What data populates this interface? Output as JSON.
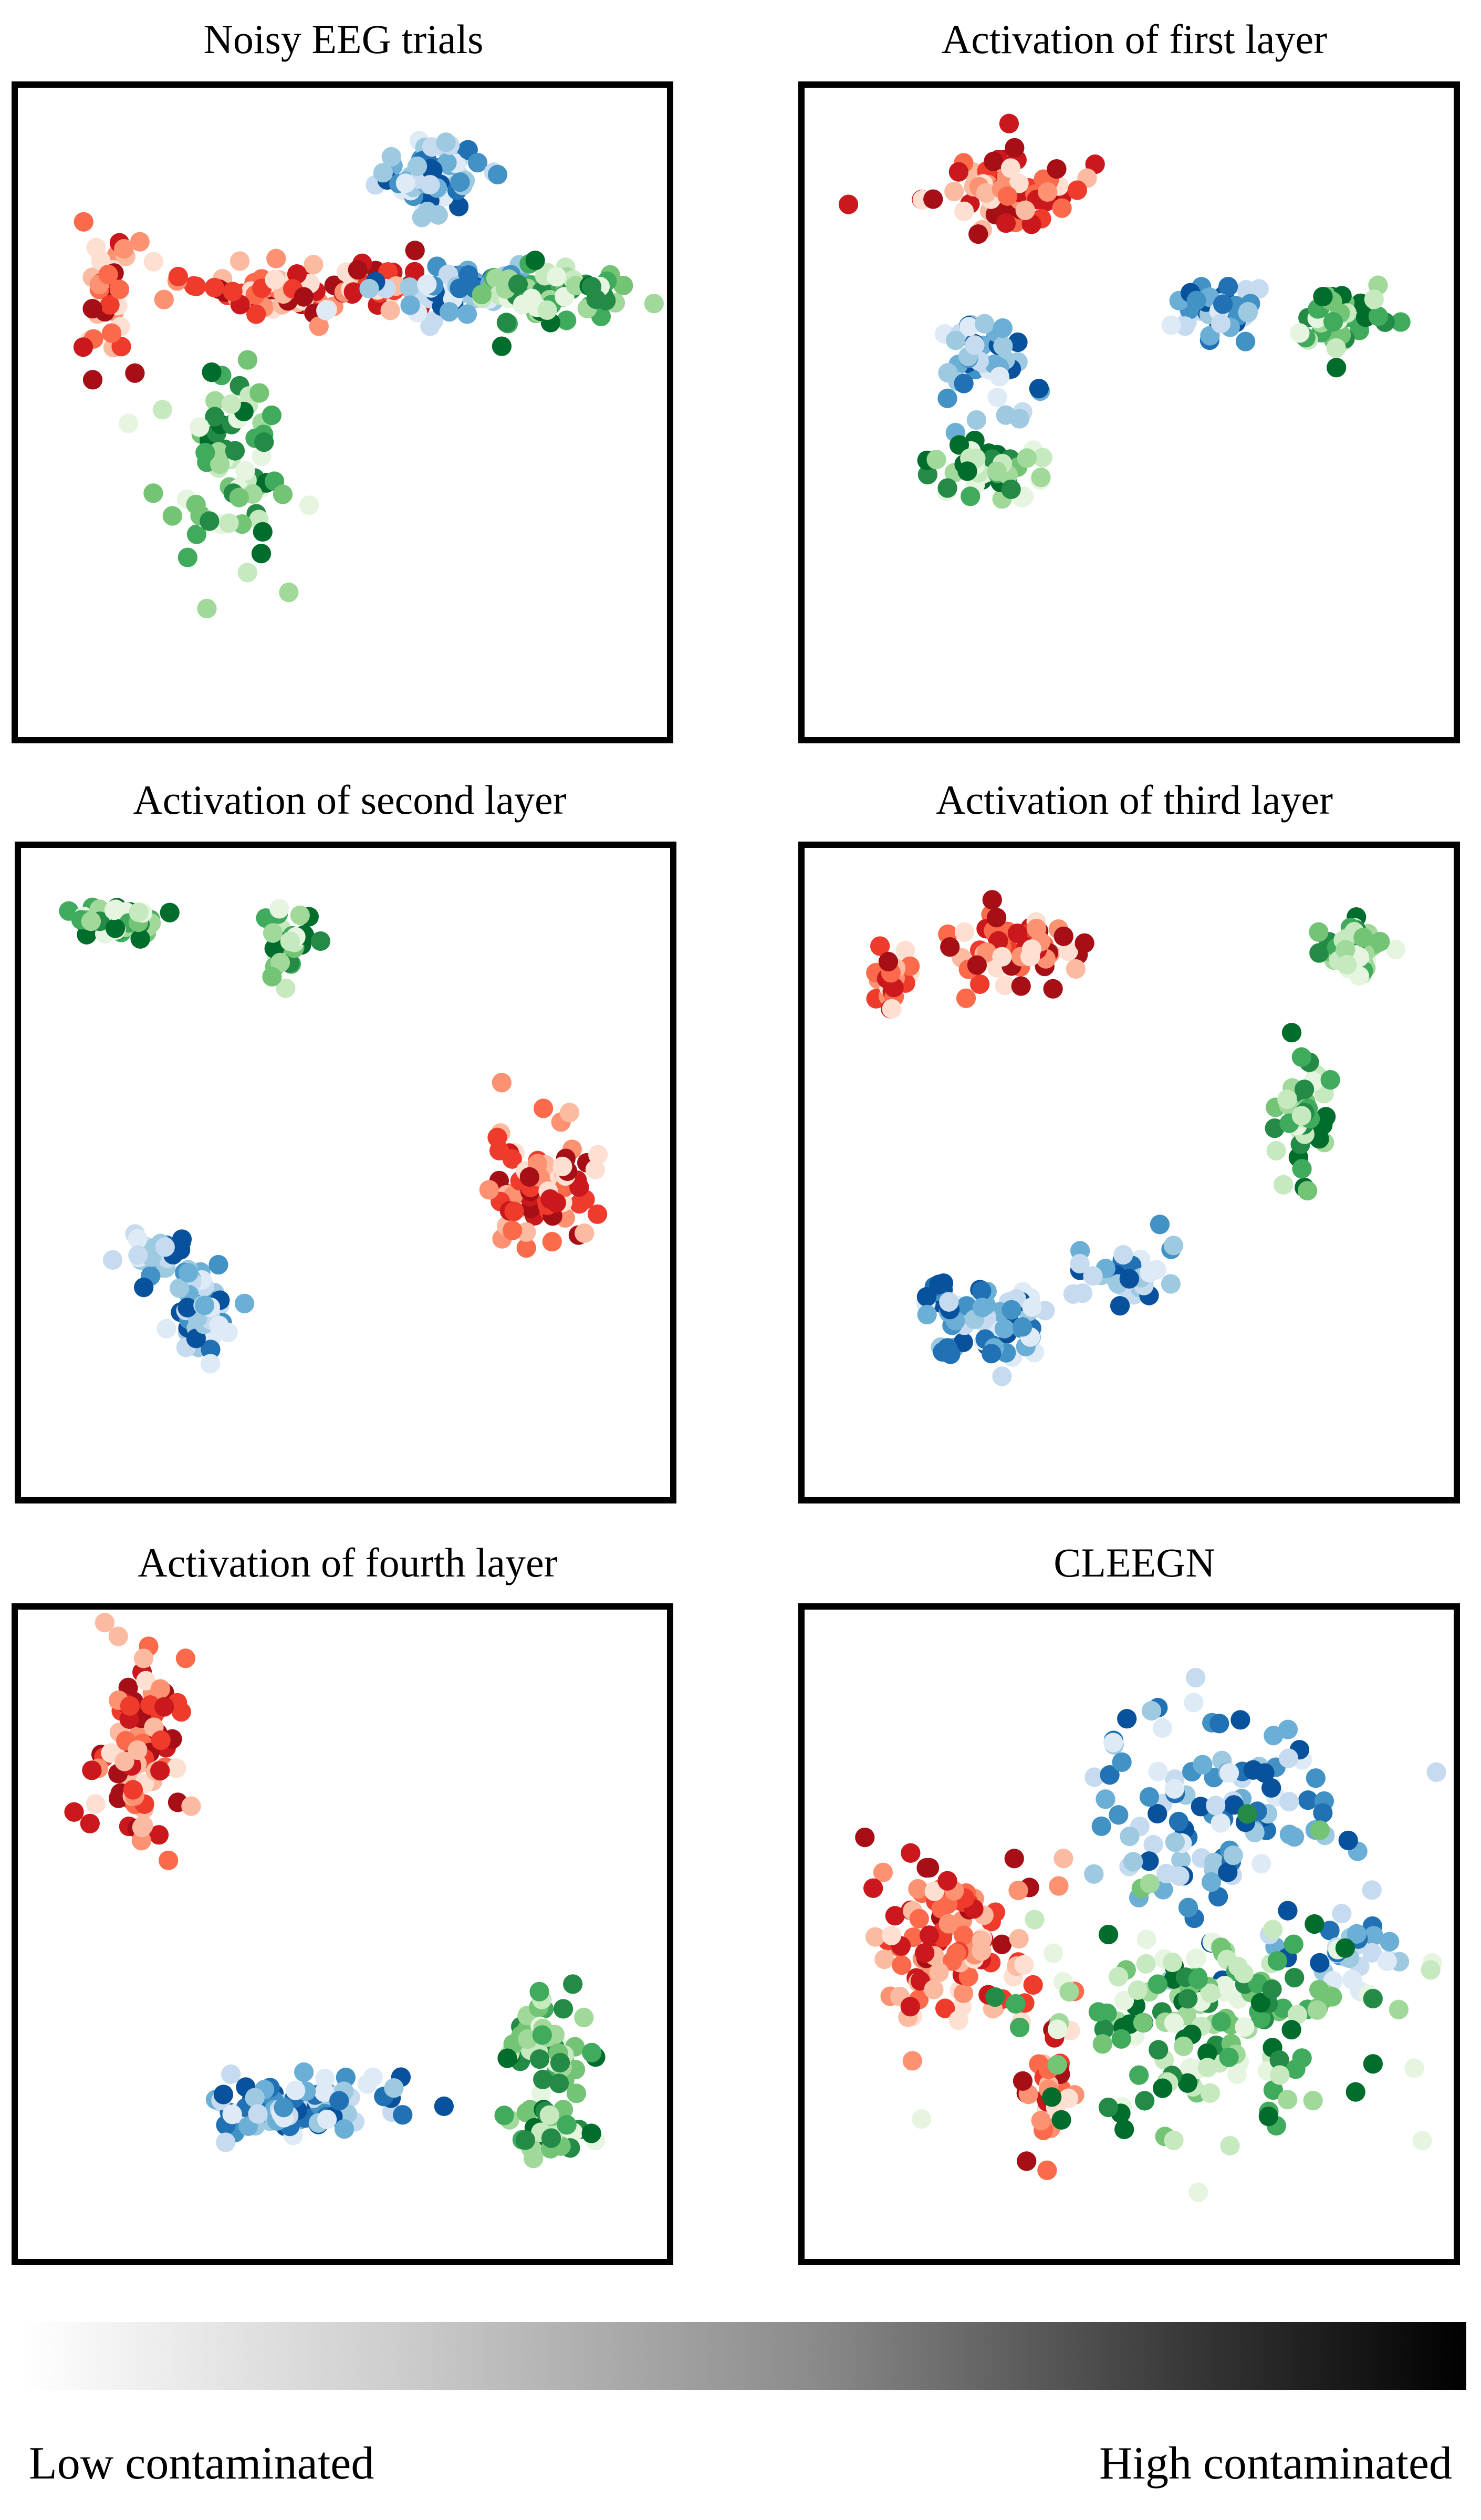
{
  "chart_data": {
    "type": "scatter",
    "panels": [
      {
        "title": "Noisy EEG trials",
        "clusters": [
          {
            "palette": "blue",
            "center": [
              0.3,
              0.82
            ],
            "spread": [
              0.09,
              0.06
            ],
            "n": 70
          },
          {
            "palette": "red",
            "center": [
              -0.82,
              0.38
            ],
            "spread": [
              0.05,
              0.11
            ],
            "n": 35
          },
          {
            "palette": "red",
            "center": [
              -0.22,
              0.42
            ],
            "spread": [
              0.17,
              0.05
            ],
            "n": 70
          },
          {
            "palette": "red",
            "center": [
              0.15,
              0.45
            ],
            "spread": [
              0.1,
              0.04
            ],
            "n": 25
          },
          {
            "palette": "blue",
            "center": [
              0.35,
              0.43
            ],
            "spread": [
              0.12,
              0.05
            ],
            "n": 55
          },
          {
            "palette": "green",
            "center": [
              0.7,
              0.4
            ],
            "spread": [
              0.14,
              0.06
            ],
            "n": 70
          },
          {
            "palette": "green",
            "center": [
              -0.4,
              -0.2
            ],
            "spread": [
              0.12,
              0.16
            ],
            "n": 70
          }
        ]
      },
      {
        "title": "Activation of first layer",
        "clusters": [
          {
            "palette": "red",
            "center": [
              -0.45,
              0.78
            ],
            "spread": [
              0.13,
              0.07
            ],
            "n": 80
          },
          {
            "palette": "blue",
            "center": [
              0.3,
              0.35
            ],
            "spread": [
              0.09,
              0.05
            ],
            "n": 40
          },
          {
            "palette": "green",
            "center": [
              0.72,
              0.33
            ],
            "spread": [
              0.08,
              0.06
            ],
            "n": 40
          },
          {
            "palette": "blue",
            "center": [
              -0.5,
              0.2
            ],
            "spread": [
              0.09,
              0.08
            ],
            "n": 45
          },
          {
            "palette": "green",
            "center": [
              -0.5,
              -0.2
            ],
            "spread": [
              0.11,
              0.05
            ],
            "n": 45
          }
        ]
      },
      {
        "title": "Activation of second layer",
        "clusters": [
          {
            "palette": "green",
            "center": [
              -0.78,
              0.87
            ],
            "spread": [
              0.08,
              0.03
            ],
            "n": 45
          },
          {
            "palette": "green",
            "center": [
              -0.2,
              0.8
            ],
            "spread": [
              0.05,
              0.05
            ],
            "n": 30
          },
          {
            "palette": "red",
            "center": [
              0.68,
              -0.04
            ],
            "spread": [
              0.09,
              0.1
            ],
            "n": 80
          },
          {
            "palette": "blue",
            "center": [
              -0.65,
              -0.28
            ],
            "spread": [
              0.05,
              0.03
            ],
            "n": 25
          },
          {
            "palette": "blue",
            "center": [
              -0.5,
              -0.48
            ],
            "spread": [
              0.06,
              0.09
            ],
            "n": 50
          }
        ]
      },
      {
        "title": "Activation of third layer",
        "clusters": [
          {
            "palette": "red",
            "center": [
              -0.4,
              0.78
            ],
            "spread": [
              0.13,
              0.06
            ],
            "n": 60
          },
          {
            "palette": "red",
            "center": [
              -0.82,
              0.65
            ],
            "spread": [
              0.04,
              0.06
            ],
            "n": 25
          },
          {
            "palette": "green",
            "center": [
              0.8,
              0.78
            ],
            "spread": [
              0.06,
              0.06
            ],
            "n": 40
          },
          {
            "palette": "green",
            "center": [
              0.61,
              0.22
            ],
            "spread": [
              0.04,
              0.11
            ],
            "n": 40
          },
          {
            "palette": "blue",
            "center": [
              0.0,
              -0.35
            ],
            "spread": [
              0.08,
              0.05
            ],
            "n": 40
          },
          {
            "palette": "blue",
            "center": [
              -0.5,
              -0.52
            ],
            "spread": [
              0.11,
              0.07
            ],
            "n": 75
          }
        ]
      },
      {
        "title": "Activation of fourth layer",
        "clusters": [
          {
            "palette": "red",
            "center": [
              -0.72,
              0.62
            ],
            "spread": [
              0.07,
              0.17
            ],
            "n": 85
          },
          {
            "palette": "blue",
            "center": [
              -0.15,
              -0.6
            ],
            "spread": [
              0.16,
              0.06
            ],
            "n": 90
          },
          {
            "palette": "green",
            "center": [
              0.72,
              -0.4
            ],
            "spread": [
              0.08,
              0.08
            ],
            "n": 50
          },
          {
            "palette": "green",
            "center": [
              0.72,
              -0.68
            ],
            "spread": [
              0.06,
              0.05
            ],
            "n": 40
          }
        ]
      },
      {
        "title": "CLEEGN",
        "clusters": [
          {
            "palette": "red",
            "center": [
              -0.6,
              -0.05
            ],
            "spread": [
              0.15,
              0.18
            ],
            "n": 110
          },
          {
            "palette": "red",
            "center": [
              -0.28,
              -0.5
            ],
            "spread": [
              0.05,
              0.12
            ],
            "n": 30
          },
          {
            "palette": "blue",
            "center": [
              0.3,
              0.4
            ],
            "spread": [
              0.2,
              0.2
            ],
            "n": 110
          },
          {
            "palette": "blue",
            "center": [
              0.75,
              -0.05
            ],
            "spread": [
              0.09,
              0.07
            ],
            "n": 30
          },
          {
            "palette": "green",
            "center": [
              0.3,
              -0.3
            ],
            "spread": [
              0.3,
              0.2
            ],
            "n": 170
          }
        ]
      }
    ],
    "colorbar": {
      "low_label": "Low contaminated",
      "high_label": "High contaminated",
      "gradient": [
        "#ffffff",
        "#000000"
      ]
    },
    "palettes": {
      "red": [
        "#fee0d2",
        "#fcbba1",
        "#fc9272",
        "#fb6a4a",
        "#ef3b2c",
        "#cb181d",
        "#a50f15"
      ],
      "blue": [
        "#deebf7",
        "#c6dbef",
        "#9ecae1",
        "#6baed6",
        "#4292c6",
        "#2171b5",
        "#08519c"
      ],
      "green": [
        "#e5f5e0",
        "#c7e9c0",
        "#a1d99b",
        "#74c476",
        "#41ab5d",
        "#238b45",
        "#006d2c"
      ]
    }
  }
}
